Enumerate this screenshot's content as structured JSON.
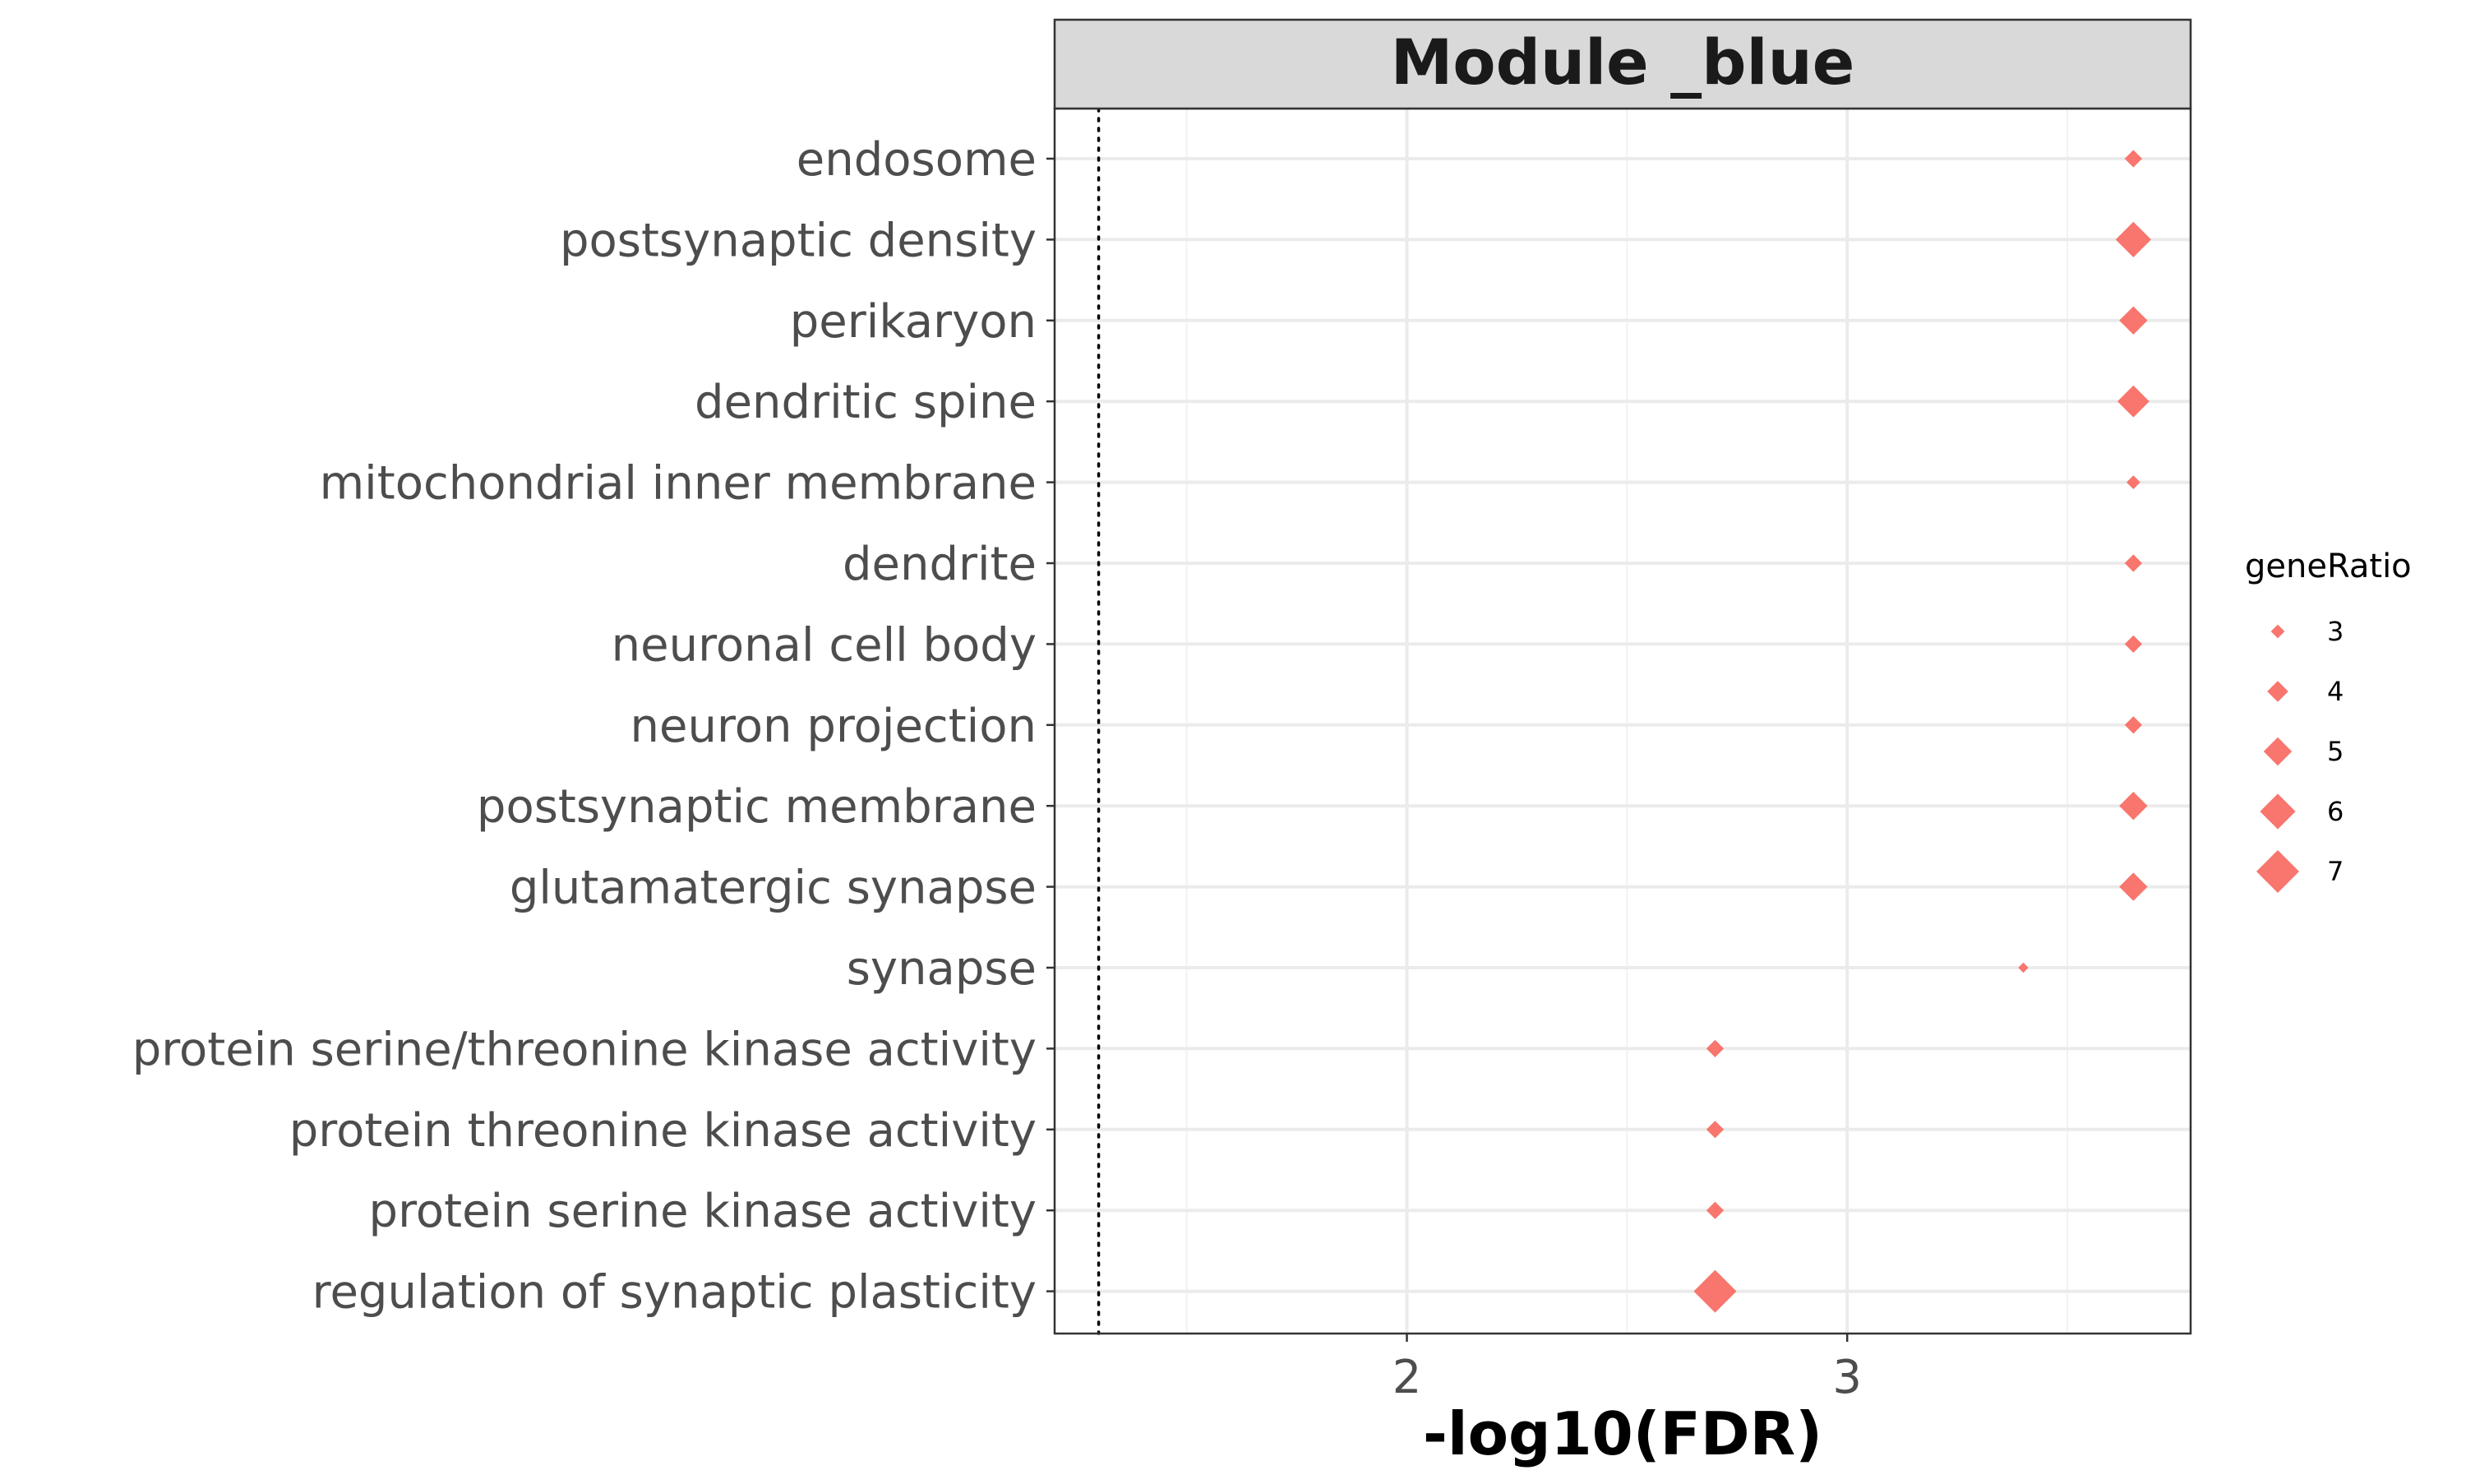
{
  "chart_data": {
    "type": "scatter",
    "facet_title": "Module _blue",
    "xlabel": "-log10(FDR)",
    "ylabel": "",
    "xlim": [
      1.2,
      3.78
    ],
    "x_ticks": [
      2,
      3
    ],
    "x_tick_labels": [
      "2",
      "3"
    ],
    "threshold_line": 1.3,
    "marker": "diamond",
    "color": "#f8766d",
    "grid": true,
    "legend": {
      "title": "geneRatio",
      "position": "right",
      "sizes": [
        3,
        4,
        5,
        6,
        7
      ],
      "labels": [
        "3",
        "4",
        "5",
        "6",
        "7"
      ]
    },
    "categories": [
      "endosome",
      "postsynaptic density",
      "perikaryon",
      "dendritic spine",
      "mitochondrial inner membrane",
      "dendrite",
      "neuronal cell body",
      "neuron projection",
      "postsynaptic membrane",
      "glutamatergic synapse",
      "synapse",
      "protein serine/threonine kinase activity",
      "protein threonine kinase activity",
      "protein serine kinase activity",
      "regulation of synaptic plasticity"
    ],
    "points": [
      {
        "category": "endosome",
        "x": 3.65,
        "geneRatio": 3.5
      },
      {
        "category": "postsynaptic density",
        "x": 3.65,
        "geneRatio": 6
      },
      {
        "category": "perikaryon",
        "x": 3.65,
        "geneRatio": 5
      },
      {
        "category": "dendritic spine",
        "x": 3.65,
        "geneRatio": 5.5
      },
      {
        "category": "mitochondrial inner membrane",
        "x": 3.65,
        "geneRatio": 3
      },
      {
        "category": "dendrite",
        "x": 3.65,
        "geneRatio": 3.5
      },
      {
        "category": "neuronal cell body",
        "x": 3.65,
        "geneRatio": 3.5
      },
      {
        "category": "neuron projection",
        "x": 3.65,
        "geneRatio": 3.5
      },
      {
        "category": "postsynaptic membrane",
        "x": 3.65,
        "geneRatio": 5
      },
      {
        "category": "glutamatergic synapse",
        "x": 3.65,
        "geneRatio": 5
      },
      {
        "category": "synapse",
        "x": 3.4,
        "geneRatio": 2.5
      },
      {
        "category": "protein serine/threonine kinase activity",
        "x": 2.7,
        "geneRatio": 3.5
      },
      {
        "category": "protein threonine kinase activity",
        "x": 2.7,
        "geneRatio": 3.5
      },
      {
        "category": "protein serine kinase activity",
        "x": 2.7,
        "geneRatio": 3.5
      },
      {
        "category": "regulation of synaptic plasticity",
        "x": 2.7,
        "geneRatio": 7
      }
    ]
  }
}
